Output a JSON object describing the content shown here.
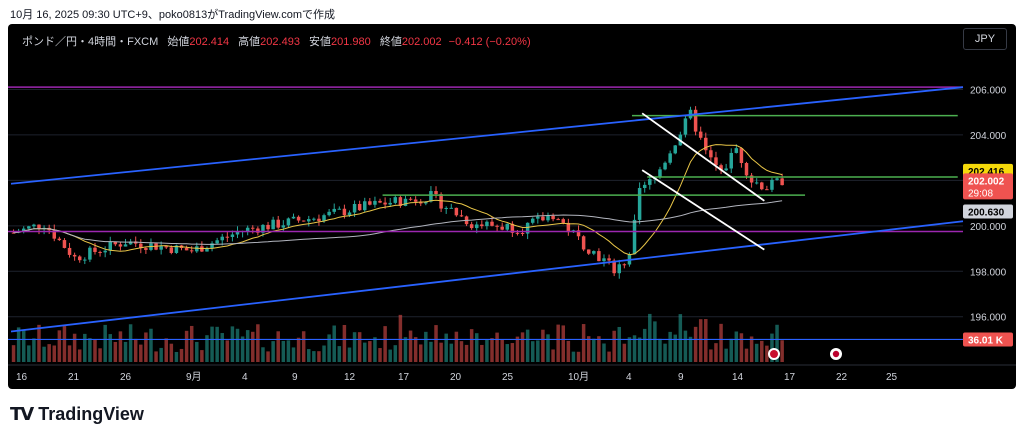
{
  "header": {
    "attribution": "10月 16, 2025 09:30 UTC+9、poko0813がTradingView.comで作成"
  },
  "legend": {
    "symbol": "ポンド／円・4時間・FXCM",
    "open_label": "始値",
    "open": "202.414",
    "high_label": "高値",
    "high": "202.493",
    "low_label": "安値",
    "low": "201.980",
    "close_label": "終値",
    "close": "202.002",
    "change": "−0.412 (−0.20%)"
  },
  "currency": "JPY",
  "logo_text": "TradingView",
  "colors": {
    "bg": "#000000",
    "up": "#26a69a",
    "down": "#ef5350",
    "blue": "#2962ff",
    "green": "#4caf50",
    "purple": "#9c27b0",
    "yellow": "#e8c547",
    "gray": "#b2b5be",
    "white": "#ffffff"
  },
  "chart_data": {
    "type": "candlestick",
    "yticks": [
      206,
      204,
      202,
      200,
      198,
      196
    ],
    "ytick_labels": [
      "206.000",
      "204.000",
      "202.000",
      "200.000",
      "198.000",
      "196.000"
    ],
    "ylim": [
      194.8,
      208.0
    ],
    "xticks": [
      "16",
      "21",
      "26",
      "9月",
      "4",
      "9",
      "12",
      "17",
      "20",
      "25",
      "10月",
      "4",
      "9",
      "14",
      "17",
      "22",
      "25"
    ],
    "price_tags": [
      {
        "value": 202.416,
        "label": "202.416",
        "style": "yellow"
      },
      {
        "value": 202.002,
        "label": "202.002",
        "label2": "29:08",
        "style": "red"
      },
      {
        "value": 200.63,
        "label": "200.630",
        "style": "gray"
      },
      {
        "value": 195.0,
        "label": "36.01 K",
        "style": "red"
      }
    ],
    "levels": [
      {
        "value": 206.1,
        "color": "purple"
      },
      {
        "value": 199.75,
        "color": "purple"
      },
      {
        "value": 204.85,
        "color": "green",
        "from_bar": 122,
        "to_bar": 186
      },
      {
        "value": 202.15,
        "color": "green",
        "from_bar": 125,
        "to_bar": 186
      },
      {
        "value": 201.35,
        "color": "green",
        "from_bar": 73,
        "to_bar": 156
      }
    ],
    "channel": [
      {
        "from": [
          0,
          201.85
        ],
        "to": [
          200,
          206.1
        ],
        "color": "blue"
      },
      {
        "from": [
          0,
          195.35
        ],
        "to": [
          200,
          200.2
        ],
        "color": "blue"
      }
    ],
    "wedge": [
      {
        "from": [
          124,
          204.95
        ],
        "to": [
          148,
          201.1
        ],
        "color": "white"
      },
      {
        "from": [
          124,
          202.45
        ],
        "to": [
          148,
          198.95
        ],
        "color": "white"
      }
    ],
    "volume_label": "36.01 K",
    "horizontal_line": {
      "value": 195.0,
      "color": "blue"
    }
  }
}
